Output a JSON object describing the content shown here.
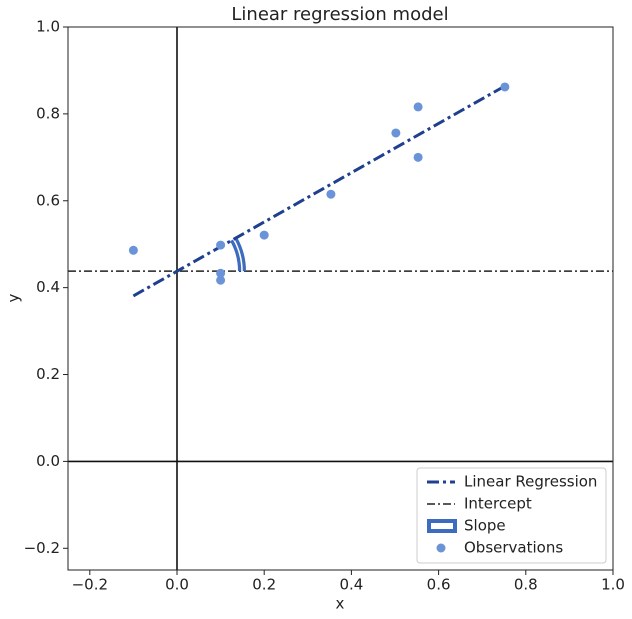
{
  "chart_data": {
    "type": "regression",
    "title": "Linear regression model",
    "x_label": "x",
    "y_label": "y",
    "xlim": [
      -0.25,
      1.0
    ],
    "ylim": [
      -0.25,
      1.0
    ],
    "xticks": [
      {
        "value": -0.2,
        "label": "−0.2"
      },
      {
        "value": 0,
        "label": "0.0"
      },
      0.2,
      0.4,
      0.6,
      0.8,
      {
        "value": 1.0,
        "label": "1.0"
      }
    ],
    "yticks": [
      {
        "value": -0.2,
        "label": "−0.2"
      },
      {
        "value": 0,
        "label": "0.0"
      },
      0.2,
      0.4,
      0.6,
      0.8,
      {
        "value": 1.0,
        "label": "1.0"
      }
    ],
    "regression": {
      "name": "Linear Regression",
      "color": "#1f3f8f",
      "x": [
        -0.1,
        0.75
      ],
      "values": [
        0.381,
        0.863
      ]
    },
    "intercept": {
      "name": "Intercept",
      "color": "#222222",
      "value": 0.438
    },
    "slope": {
      "name": "Slope",
      "color": "#3d6bbf",
      "value": 0.567
    },
    "observations": {
      "name": "Observations",
      "color": "#6a93d8",
      "x": [
        -0.1,
        0.1,
        0.1,
        0.1,
        0.2,
        0.353,
        0.502,
        0.553,
        0.553,
        0.752
      ],
      "values": [
        0.486,
        0.498,
        0.433,
        0.417,
        0.521,
        0.615,
        0.756,
        0.816,
        0.7,
        0.862
      ]
    },
    "legend": "lower right"
  }
}
